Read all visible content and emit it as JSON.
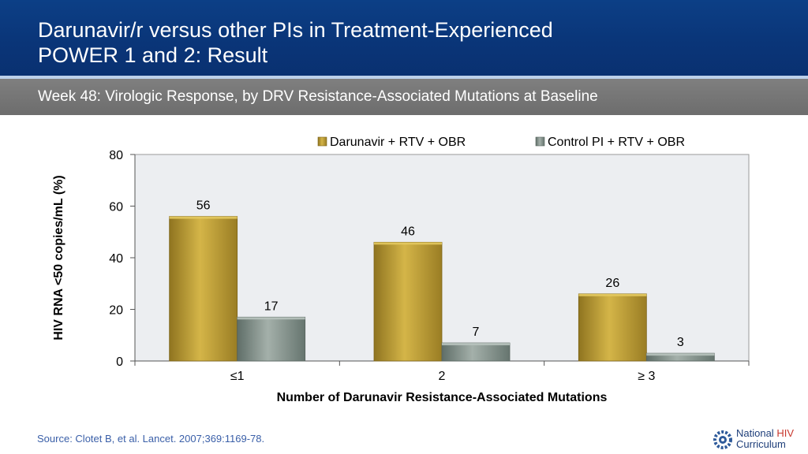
{
  "header": {
    "title_line1": "Darunavir/r versus other PIs in Treatment-Experienced",
    "title_line2": "POWER 1 and 2: Result"
  },
  "subheader": {
    "text": "Week 48: Virologic Response, by DRV Resistance-Associated Mutations at Baseline"
  },
  "chart_data": {
    "type": "bar",
    "categories": [
      "≤1",
      "2",
      "≥ 3"
    ],
    "series": [
      {
        "name": "Darunavir + RTV + OBR",
        "values": [
          56,
          46,
          26
        ],
        "color": "#b89a2e"
      },
      {
        "name": "Control PI + RTV + OBR",
        "values": [
          17,
          7,
          3
        ],
        "color": "#7f8f88"
      }
    ],
    "xlabel": "Number of Darunavir Resistance-Associated Mutations",
    "ylabel": "HIV RNA <50 copies/mL (%)",
    "ylim": [
      0,
      80
    ],
    "yticks": [
      0,
      20,
      40,
      60,
      80
    ],
    "grid": false,
    "legend": "top-right",
    "plot_background": "#eceef1"
  },
  "footer": {
    "source": "Source: Clotet B, et al. Lancet. 2007;369:1169-78.",
    "logo_line1_a": "National ",
    "logo_line1_b": "HIV",
    "logo_line2": "Curriculum"
  }
}
